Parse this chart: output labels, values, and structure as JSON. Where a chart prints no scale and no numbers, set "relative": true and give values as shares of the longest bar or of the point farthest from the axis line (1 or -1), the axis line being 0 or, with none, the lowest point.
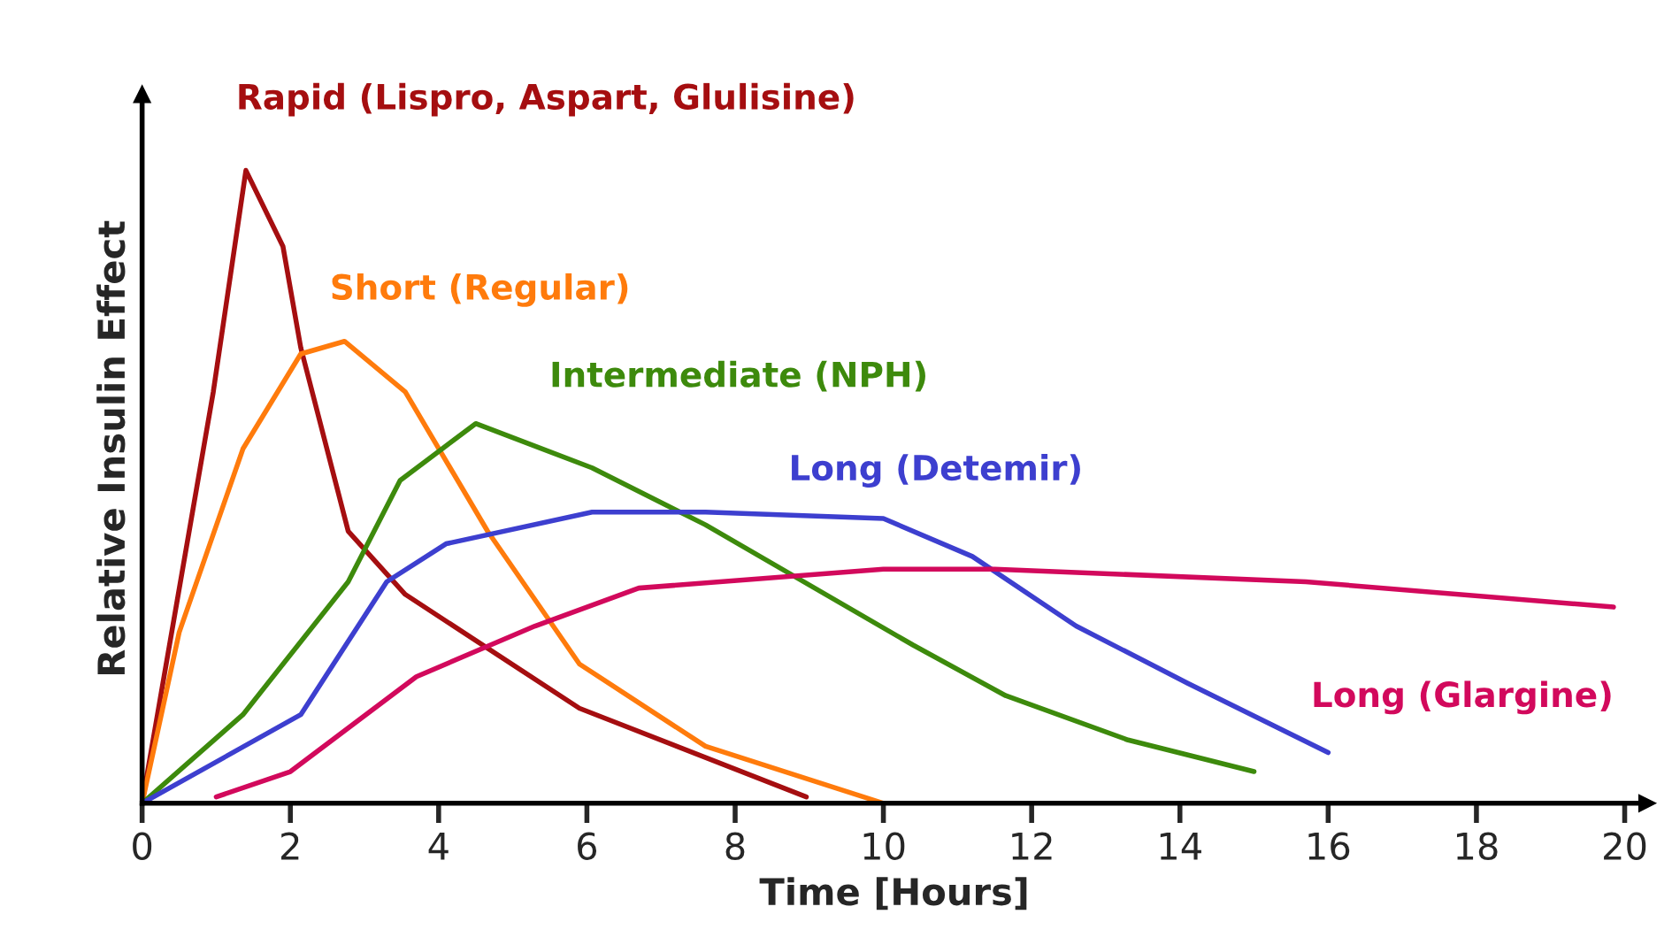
{
  "chart_data": {
    "type": "line",
    "relative": true,
    "xlabel": "Time [Hours]",
    "ylabel": "Relative Insulin Effect",
    "xlim": [
      0,
      20.3
    ],
    "xticks": [
      0,
      2,
      4,
      6,
      8,
      10,
      12,
      14,
      16,
      18,
      20
    ],
    "grid": false,
    "legend": false,
    "marker": "none",
    "line_style": "solid",
    "series": [
      {
        "name": "Rapid (Lispro, Aspart, Glulisine)",
        "color": "#a50e10",
        "x": [
          0,
          0.96,
          1.4,
          1.9,
          2.14,
          2.78,
          3.55,
          5.9,
          8.96
        ],
        "values": [
          0,
          0.65,
          1,
          0.88,
          0.72,
          0.43,
          0.33,
          0.15,
          0.01
        ]
      },
      {
        "name": "Short (Regular)",
        "color": "#ff7b0c",
        "x": [
          0,
          0.5,
          1.36,
          2.14,
          2.73,
          3.55,
          4.66,
          5.9,
          7.6,
          10
        ],
        "values": [
          0,
          0.27,
          0.56,
          0.71,
          0.73,
          0.65,
          0.43,
          0.22,
          0.09,
          0
        ]
      },
      {
        "name": "Intermediate (NPH)",
        "color": "#3d8a0c",
        "x": [
          0,
          1.36,
          2.78,
          3.48,
          4.5,
          6.07,
          7.6,
          10.4,
          11.65,
          13.3,
          15
        ],
        "values": [
          0,
          0.14,
          0.35,
          0.51,
          0.6,
          0.53,
          0.44,
          0.25,
          0.17,
          0.1,
          0.05
        ]
      },
      {
        "name": "Long (Detemir)",
        "color": "#3d3fcf",
        "x": [
          0,
          2.14,
          3.3,
          4.1,
          6.07,
          7.6,
          10,
          11.2,
          12.6,
          14.1,
          16
        ],
        "values": [
          0,
          0.14,
          0.35,
          0.41,
          0.46,
          0.46,
          0.45,
          0.39,
          0.28,
          0.19,
          0.08
        ]
      },
      {
        "name": "Long (Glargine)",
        "color": "#d2095c",
        "x": [
          1,
          2,
          3.7,
          5.3,
          6.7,
          10,
          11.5,
          15.7,
          19.85
        ],
        "values": [
          0.01,
          0.05,
          0.2,
          0.28,
          0.34,
          0.37,
          0.37,
          0.35,
          0.31
        ]
      }
    ]
  }
}
